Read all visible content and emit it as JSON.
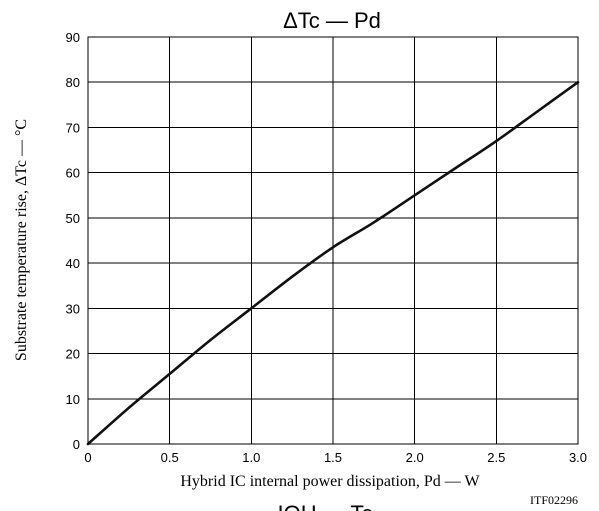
{
  "chart_data": {
    "type": "line",
    "title": "ΔTc — Pd",
    "xlabel": "Hybrid IC internal power dissipation, Pd — W",
    "ylabel": "Substrate temperature rise, ΔTc — °C",
    "xlim": [
      0,
      3.0
    ],
    "ylim": [
      0,
      90
    ],
    "grid": true,
    "x_ticks": [
      "0",
      "0.5",
      "1.0",
      "1.5",
      "2.0",
      "2.5",
      "3.0"
    ],
    "y_ticks": [
      "0",
      "10",
      "20",
      "30",
      "40",
      "50",
      "60",
      "70",
      "80",
      "90"
    ],
    "x": [
      0,
      0.25,
      0.5,
      0.75,
      1.0,
      1.25,
      1.5,
      1.75,
      2.0,
      2.25,
      2.5,
      2.75,
      3.0
    ],
    "y": [
      0,
      8,
      15.5,
      23,
      30,
      37,
      43.5,
      49,
      55,
      61,
      67,
      73.5,
      80
    ],
    "figure_code": "ITF02296",
    "cut_text_bottom": "IOH — Tc"
  }
}
